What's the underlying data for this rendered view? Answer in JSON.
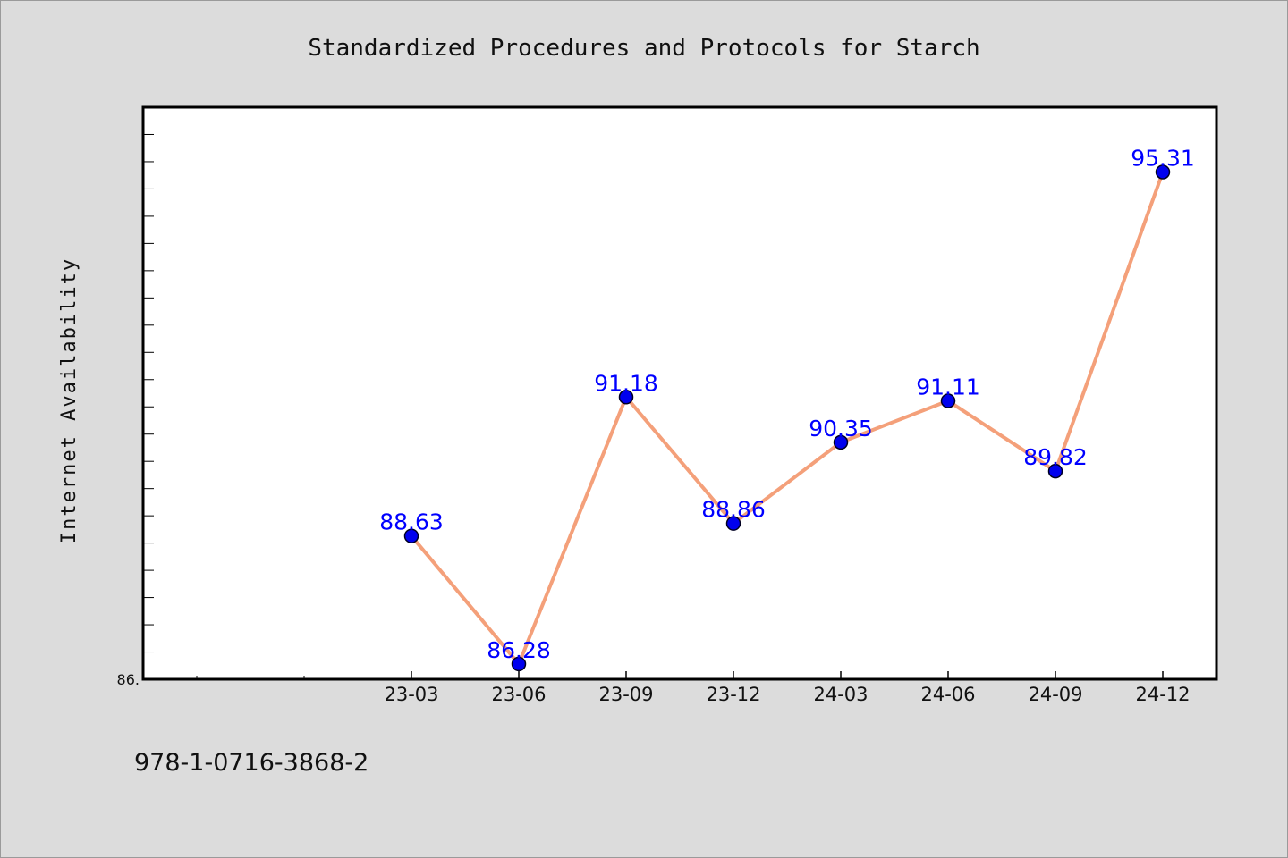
{
  "footer_text": "978-1-0716-3868-2",
  "chart_data": {
    "type": "line",
    "title": "Standardized Procedures and Protocols for Starch",
    "xlabel": "",
    "ylabel": "Internet Availability",
    "categories": [
      "23-03",
      "23-06",
      "23-09",
      "23-12",
      "24-03",
      "24-06",
      "24-09",
      "24-12"
    ],
    "series": [
      {
        "values": [
          88.63,
          86.28,
          91.18,
          88.86,
          90.35,
          91.11,
          89.82,
          95.31
        ],
        "data_labels": [
          "88.63",
          "86.28",
          "91.18",
          "88.86",
          "90.35",
          "91.11",
          "89.82",
          "95.31"
        ]
      }
    ],
    "ylim": [
      86.0,
      96.5
    ],
    "xlim_slots": 10,
    "category_start_slot": 2,
    "y_tick_labels": [
      "86."
    ],
    "grid": false,
    "legend": "none",
    "colors": {
      "line": "#f4a07a",
      "marker": "#0000ee",
      "marker_edge": "#000022",
      "data_label": "#0000ff",
      "plot_background": "#ffffff",
      "figure_background": "#dcdcdc"
    }
  }
}
